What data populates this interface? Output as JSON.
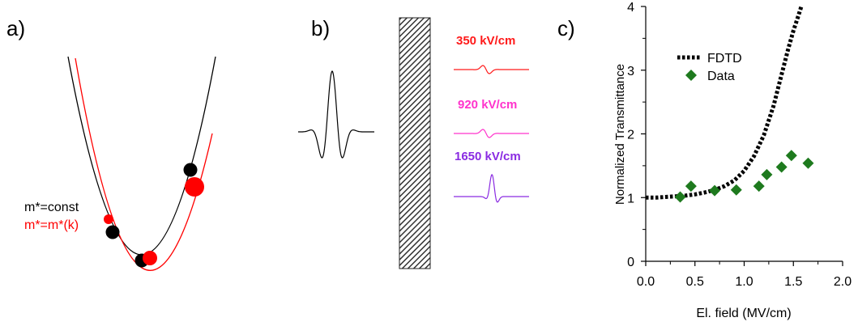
{
  "panels": {
    "a": {
      "label": "a)",
      "legend": [
        {
          "text": "m*=const",
          "color": "#000000"
        },
        {
          "text": "m*=m*(k)",
          "color": "#ff0000"
        }
      ]
    },
    "b": {
      "label": "b)",
      "traces": [
        {
          "text": "350 kV/cm",
          "color": "#ff1a1a",
          "amplitude": 0.35
        },
        {
          "text": "920 kV/cm",
          "color": "#ff33cc",
          "amplitude": 0.35
        },
        {
          "text": "1650 kV/cm",
          "color": "#8a2be2",
          "amplitude": 1.0
        }
      ]
    },
    "c": {
      "label": "c)"
    }
  },
  "chart_data": {
    "type": "scatter",
    "xlabel": "El.  field (MV/cm)",
    "ylabel": "Normalized Transmittance",
    "xlim": [
      0.0,
      2.0
    ],
    "ylim": [
      0,
      4
    ],
    "xticks": [
      "0.0",
      "0.5",
      "1.0",
      "1.5",
      "2.0"
    ],
    "yticks": [
      "0",
      "1",
      "2",
      "3",
      "4"
    ],
    "legend_position": "top-left",
    "series": [
      {
        "name": "FDTD",
        "kind": "line",
        "style": "dotted",
        "color": "#000000",
        "x": [
          0.0,
          0.1,
          0.2,
          0.3,
          0.4,
          0.5,
          0.6,
          0.7,
          0.8,
          0.9,
          1.0,
          1.1,
          1.2,
          1.3,
          1.35,
          1.4,
          1.45,
          1.5,
          1.55,
          1.58
        ],
        "y": [
          1.0,
          1.0,
          1.01,
          1.02,
          1.03,
          1.05,
          1.08,
          1.12,
          1.18,
          1.27,
          1.42,
          1.65,
          1.98,
          2.45,
          2.75,
          3.05,
          3.35,
          3.62,
          3.85,
          4.0
        ]
      },
      {
        "name": "Data",
        "kind": "markers",
        "marker": "diamond",
        "color": "#1e7a1e",
        "x": [
          0.35,
          0.46,
          0.7,
          0.92,
          1.15,
          1.23,
          1.38,
          1.48,
          1.65
        ],
        "y": [
          1.01,
          1.18,
          1.11,
          1.12,
          1.18,
          1.36,
          1.48,
          1.66,
          1.54
        ]
      }
    ]
  }
}
